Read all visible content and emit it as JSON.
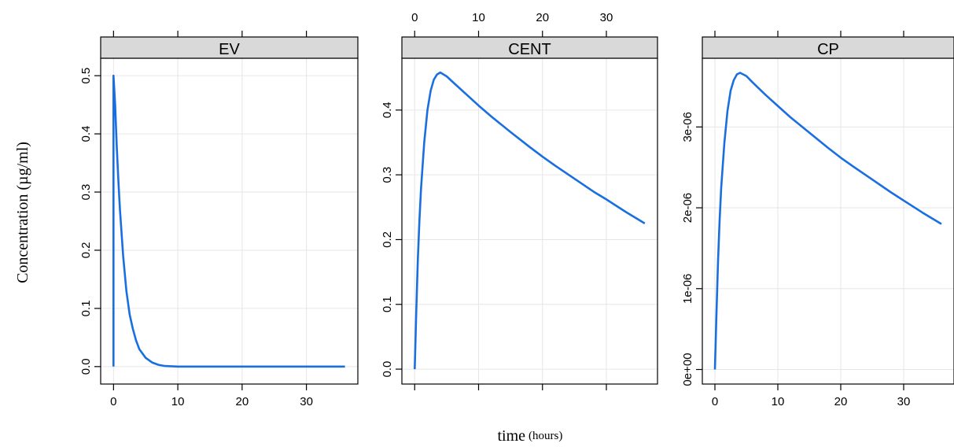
{
  "chart_data": {
    "type": "line",
    "xlabel": "time",
    "xlabel_unit": "(hours)",
    "ylabel": "Concentration (µg/ml)",
    "line_color": "#1a6fe0",
    "grid": true,
    "panels": [
      {
        "name": "EV",
        "xlim": [
          -2,
          38
        ],
        "ylim": [
          -0.03,
          0.53
        ],
        "yticks": [
          0,
          0.1,
          0.2,
          0.3,
          0.4,
          0.5
        ],
        "ytick_labels": [
          "0.0",
          "0.1",
          "0.2",
          "0.3",
          "0.4",
          "0.5"
        ],
        "xticks": [
          0,
          10,
          20,
          30
        ],
        "xtick_labels": [
          "0",
          "10",
          "20",
          "30"
        ],
        "xtick_labels_position": "bottom",
        "x": [
          0,
          0,
          0.25,
          0.5,
          0.75,
          1,
          1.5,
          2,
          2.5,
          3,
          3.5,
          4,
          5,
          6,
          7,
          8,
          10,
          15,
          20,
          25,
          30,
          36
        ],
        "y": [
          0,
          0.5,
          0.45,
          0.38,
          0.32,
          0.27,
          0.19,
          0.13,
          0.09,
          0.065,
          0.045,
          0.03,
          0.015,
          0.007,
          0.003,
          0.001,
          0,
          0,
          0,
          0,
          0,
          0
        ]
      },
      {
        "name": "CENT",
        "xlim": [
          -2,
          38
        ],
        "ylim": [
          -0.023,
          0.48
        ],
        "yticks": [
          0,
          0.1,
          0.2,
          0.3,
          0.4
        ],
        "ytick_labels": [
          "0.0",
          "0.1",
          "0.2",
          "0.3",
          "0.4"
        ],
        "xticks": [
          0,
          10,
          20,
          30
        ],
        "xtick_labels": [
          "0",
          "10",
          "20",
          "30"
        ],
        "xtick_labels_position": "top",
        "x": [
          0,
          0.25,
          0.5,
          0.75,
          1,
          1.5,
          2,
          2.5,
          3,
          3.5,
          4,
          5,
          6,
          8,
          10,
          12,
          15,
          18,
          20,
          22,
          25,
          28,
          30,
          33,
          36
        ],
        "y": [
          0,
          0.09,
          0.17,
          0.23,
          0.28,
          0.35,
          0.4,
          0.43,
          0.447,
          0.455,
          0.458,
          0.452,
          0.443,
          0.425,
          0.407,
          0.39,
          0.366,
          0.343,
          0.328,
          0.314,
          0.294,
          0.274,
          0.262,
          0.243,
          0.225
        ]
      },
      {
        "name": "CP",
        "xlim": [
          -2,
          38
        ],
        "ylim": [
          -1.8e-07,
          3.85e-06
        ],
        "yticks": [
          0,
          1e-06,
          2e-06,
          3e-06
        ],
        "ytick_labels": [
          "0e+00",
          "1e-06",
          "2e-06",
          "3e-06"
        ],
        "xticks": [
          0,
          10,
          20,
          30
        ],
        "xtick_labels": [
          "0",
          "10",
          "20",
          "30"
        ],
        "xtick_labels_position": "bottom",
        "x": [
          0,
          0.25,
          0.5,
          0.75,
          1,
          1.5,
          2,
          2.5,
          3,
          3.5,
          4,
          5,
          6,
          8,
          10,
          12,
          15,
          18,
          20,
          22,
          25,
          28,
          30,
          33,
          36
        ],
        "y": [
          0,
          7e-07,
          1.35e-06,
          1.85e-06,
          2.25e-06,
          2.8e-06,
          3.2e-06,
          3.45e-06,
          3.58e-06,
          3.65e-06,
          3.67e-06,
          3.63e-06,
          3.55e-06,
          3.4e-06,
          3.26e-06,
          3.12e-06,
          2.93e-06,
          2.74e-06,
          2.62e-06,
          2.51e-06,
          2.35e-06,
          2.19e-06,
          2.09e-06,
          1.94e-06,
          1.8e-06
        ]
      }
    ]
  }
}
